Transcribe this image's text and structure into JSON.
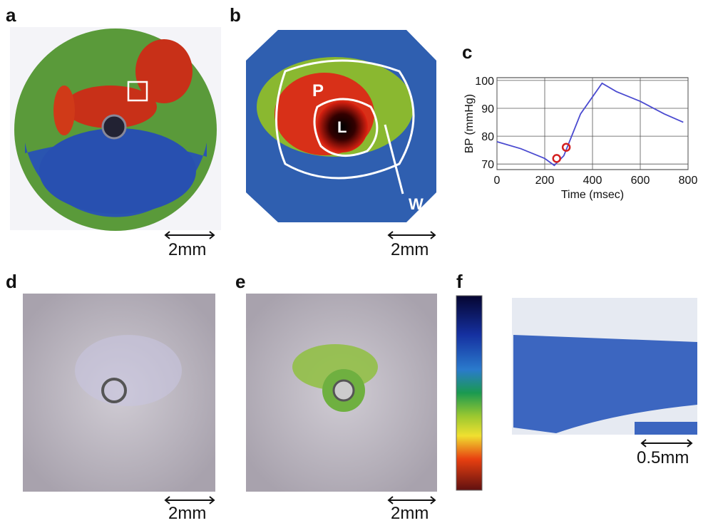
{
  "panels": {
    "a": {
      "label": "a",
      "scale": "2mm"
    },
    "b": {
      "label": "b",
      "scale": "2mm",
      "regions": [
        "P",
        "L",
        "W"
      ]
    },
    "c": {
      "label": "c"
    },
    "d": {
      "label": "d",
      "scale": "2mm"
    },
    "e": {
      "label": "e",
      "scale": "2mm"
    },
    "f": {
      "label": "f",
      "scale": "0.5mm"
    }
  },
  "chart_data": {
    "type": "line",
    "xlabel": "Time (msec)",
    "ylabel": "BP (mmHg)",
    "x": [
      0,
      100,
      200,
      240,
      280,
      350,
      440,
      500,
      600,
      700,
      780
    ],
    "series": [
      {
        "color": "#4a4ad0",
        "values": [
          78,
          75.5,
          72,
          69.5,
          73,
          88,
          99,
          96,
          92.5,
          88,
          85
        ]
      }
    ],
    "markers": {
      "x": [
        250,
        290
      ],
      "values": [
        72,
        76
      ],
      "color": "#d42020"
    },
    "xlim": [
      0,
      800
    ],
    "ylim": [
      68,
      101
    ],
    "xticks": [
      0,
      200,
      400,
      600,
      800
    ],
    "yticks": [
      70,
      80,
      90,
      100
    ],
    "grid": true
  }
}
